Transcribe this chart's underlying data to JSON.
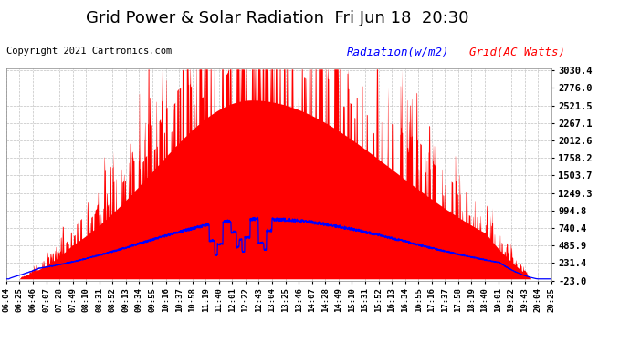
{
  "title": "Grid Power & Solar Radiation  Fri Jun 18  20:30",
  "copyright": "Copyright 2021 Cartronics.com",
  "legend_radiation": "Radiation(w/m2)",
  "legend_grid": "Grid(AC Watts)",
  "yticks": [
    3030.4,
    2776.0,
    2521.5,
    2267.1,
    2012.6,
    1758.2,
    1503.7,
    1249.3,
    994.8,
    740.4,
    485.9,
    231.4,
    -23.0
  ],
  "ymin": -23.0,
  "ymax": 3030.4,
  "xtick_labels": [
    "06:04",
    "06:25",
    "06:46",
    "07:07",
    "07:28",
    "07:49",
    "08:10",
    "08:31",
    "08:52",
    "09:13",
    "09:34",
    "09:55",
    "10:16",
    "10:37",
    "10:58",
    "11:19",
    "11:40",
    "12:01",
    "12:22",
    "12:43",
    "13:04",
    "13:25",
    "13:46",
    "14:07",
    "14:28",
    "14:49",
    "15:10",
    "15:31",
    "15:52",
    "16:13",
    "16:34",
    "16:55",
    "17:16",
    "17:37",
    "17:58",
    "18:19",
    "18:40",
    "19:01",
    "19:22",
    "19:43",
    "20:04",
    "20:25"
  ],
  "background_color": "#ffffff",
  "fill_color": "#ff0000",
  "radiation_color": "#0000ff",
  "title_fontsize": 13,
  "copyright_fontsize": 7.5,
  "legend_fontsize": 9,
  "tick_label_fontsize": 6.5,
  "ytick_label_fontsize": 7.5,
  "grid_line_color": "#cccccc",
  "grid_line_style": "--"
}
